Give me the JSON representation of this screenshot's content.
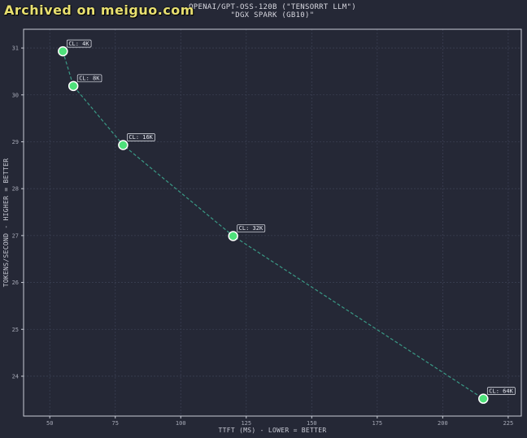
{
  "watermark": "Archived on meiguo.com",
  "chart_data": {
    "type": "line",
    "title": "OPENAI/GPT-OSS-120B (\"TENSORRT LLM\")",
    "subtitle": "\"DGX SPARK (GB10)\"",
    "xlabel": "TTFT (MS) - LOWER = BETTER",
    "ylabel": "TOKENS/SECOND - HIGHER = BETTER",
    "xlim": [
      40,
      230
    ],
    "ylim": [
      23.15,
      31.4
    ],
    "x_ticks": [
      50,
      75,
      100,
      125,
      150,
      175,
      200,
      225
    ],
    "y_ticks": [
      24,
      25,
      26,
      27,
      28,
      29,
      30,
      31
    ],
    "grid": true,
    "line_style": "dashed",
    "colors": {
      "background": "#252836",
      "marker": "#4ee07a",
      "marker_edge": "#ffffff",
      "line": "#3a9a86",
      "grid": "#3a3f52"
    },
    "points": [
      {
        "label": "CL: 4K",
        "x": 55,
        "y": 30.93
      },
      {
        "label": "CL: 8K",
        "x": 59,
        "y": 30.19
      },
      {
        "label": "CL: 16K",
        "x": 78,
        "y": 28.93
      },
      {
        "label": "CL: 32K",
        "x": 120,
        "y": 26.99
      },
      {
        "label": "CL: 64K",
        "x": 215.5,
        "y": 23.52
      }
    ]
  }
}
